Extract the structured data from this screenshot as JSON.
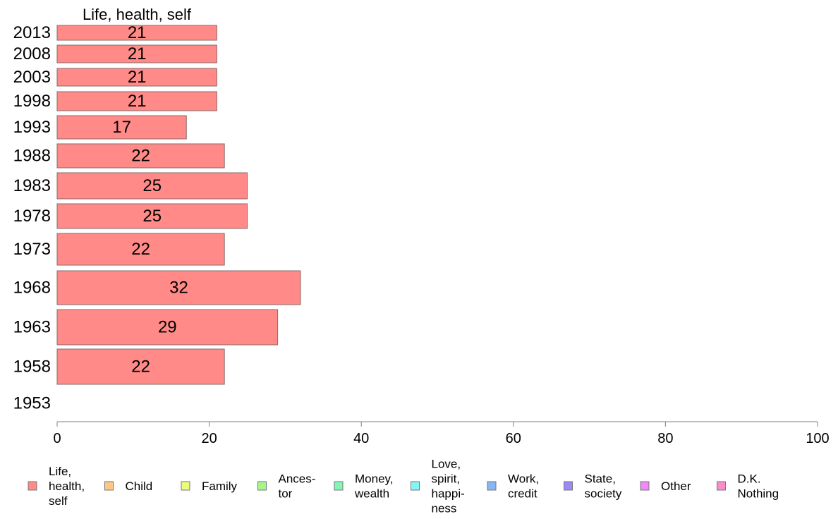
{
  "chart_data": {
    "type": "bar",
    "orientation": "horizontal",
    "title": "Life, health, self",
    "categories": [
      "2013",
      "2008",
      "2003",
      "1998",
      "1993",
      "1988",
      "1983",
      "1978",
      "1973",
      "1968",
      "1963",
      "1958",
      "1953"
    ],
    "values": [
      21,
      21,
      21,
      21,
      17,
      22,
      25,
      25,
      22,
      32,
      29,
      22,
      null
    ],
    "xlim": [
      0,
      100
    ],
    "xticks": [
      "0",
      "20",
      "40",
      "60",
      "80",
      "100"
    ],
    "grid": false,
    "legend_position": "bottom",
    "legend": [
      {
        "label": "Life,\nhealth,\nself",
        "color": "#ff8a87"
      },
      {
        "label": "Child",
        "color": "#ffc685"
      },
      {
        "label": "Family",
        "color": "#eefc7c"
      },
      {
        "label": "Ances-\ntor",
        "color": "#a6f78a"
      },
      {
        "label": "Money,\nwealth",
        "color": "#86f5b4"
      },
      {
        "label": "Love,\nspirit,\nhappi-\nness",
        "color": "#85f6f6"
      },
      {
        "label": "Work,\ncredit",
        "color": "#88b6f4"
      },
      {
        "label": "State,\nsociety",
        "color": "#9b8af6"
      },
      {
        "label": "Other",
        "color": "#f08af5"
      },
      {
        "label": "D.K.\nNothing",
        "color": "#fa8ccc"
      }
    ]
  }
}
